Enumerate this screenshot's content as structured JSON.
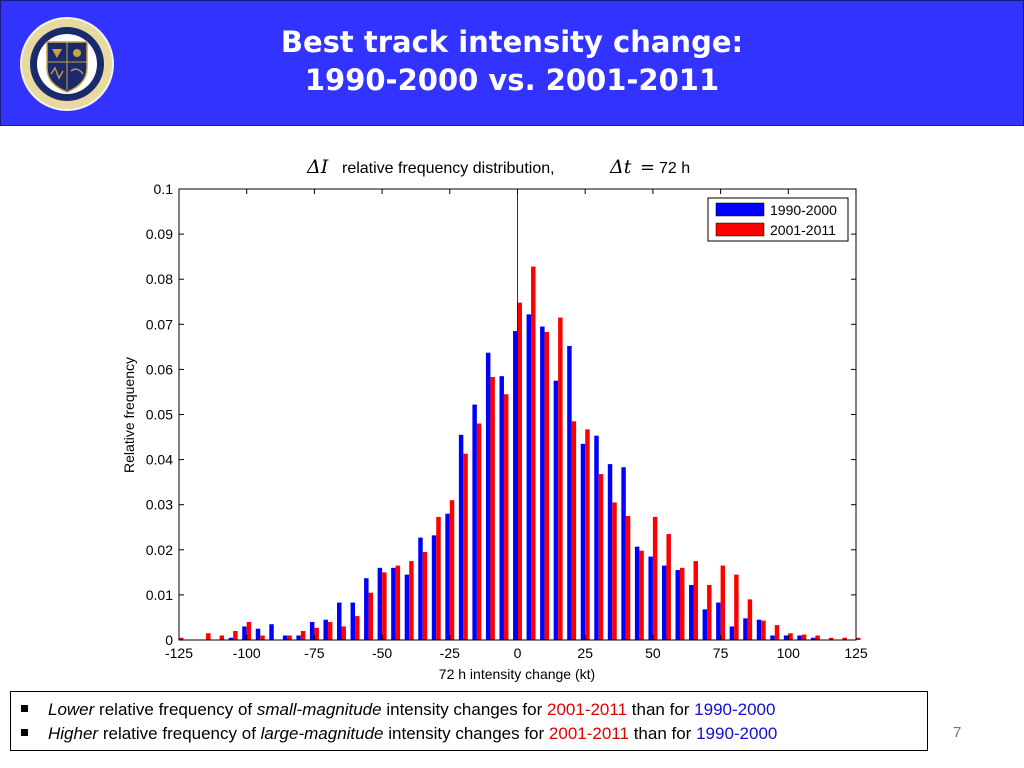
{
  "header": {
    "title_line1": "Best track intensity change:",
    "title_line2": "1990-2000 vs. 2001-2011",
    "logo_text": "NAVAL RESEARCH LABORATORY MONTEREY, CA"
  },
  "colors": {
    "header_bg": "#3333ff",
    "series1": "#0000ff",
    "series2": "#ff0000"
  },
  "chart_data": {
    "type": "bar",
    "title_symbol": "ΔI",
    "title_text": "relative frequency distribution,",
    "title_dt": "Δt",
    "title_eq": "=",
    "title_value": "72 h",
    "xlabel": "72 h intensity change (kt)",
    "ylabel": "Relative frequency",
    "xlim": [
      -125,
      125
    ],
    "ylim": [
      0,
      0.1
    ],
    "xticks": [
      "-125",
      "-100",
      "-75",
      "-50",
      "-25",
      "0",
      "25",
      "50",
      "75",
      "100",
      "125"
    ],
    "yticks": [
      "0",
      "0.01",
      "0.02",
      "0.03",
      "0.04",
      "0.05",
      "0.06",
      "0.07",
      "0.08",
      "0.09",
      "0.1"
    ],
    "zero_line": 0,
    "legend_position": "top-right",
    "x": [
      -125,
      -120,
      -115,
      -110,
      -105,
      -100,
      -95,
      -90,
      -85,
      -80,
      -75,
      -70,
      -65,
      -60,
      -55,
      -50,
      -45,
      -40,
      -35,
      -30,
      -25,
      -20,
      -15,
      -10,
      -5,
      0,
      5,
      10,
      15,
      20,
      25,
      30,
      35,
      40,
      45,
      50,
      55,
      60,
      65,
      70,
      75,
      80,
      85,
      90,
      95,
      100,
      105,
      110,
      115,
      120,
      125
    ],
    "series": [
      {
        "name": "1990-2000",
        "values": [
          0,
          0,
          0,
          0,
          0.0005,
          0.003,
          0.0025,
          0.0035,
          0.001,
          0.001,
          0.004,
          0.0045,
          0.0083,
          0.0083,
          0.0137,
          0.016,
          0.016,
          0.0145,
          0.0227,
          0.0232,
          0.028,
          0.0455,
          0.0522,
          0.0637,
          0.0585,
          0.0685,
          0.0722,
          0.0695,
          0.0575,
          0.0652,
          0.0435,
          0.0453,
          0.039,
          0.0383,
          0.0207,
          0.0185,
          0.0165,
          0.0155,
          0.0122,
          0.0068,
          0.0083,
          0.003,
          0.0048,
          0.0045,
          0.001,
          0.001,
          0.001,
          0.0005,
          0,
          0,
          0
        ]
      },
      {
        "name": "2001-2011",
        "values": [
          0.0005,
          0,
          0.0015,
          0.001,
          0.002,
          0.004,
          0.001,
          0,
          0.001,
          0.002,
          0.0027,
          0.004,
          0.003,
          0.0053,
          0.0105,
          0.015,
          0.0165,
          0.0175,
          0.0195,
          0.0273,
          0.031,
          0.0413,
          0.048,
          0.0583,
          0.0545,
          0.0748,
          0.0828,
          0.0683,
          0.0715,
          0.0485,
          0.0467,
          0.0368,
          0.0305,
          0.0275,
          0.0198,
          0.0273,
          0.0235,
          0.016,
          0.0175,
          0.0122,
          0.0165,
          0.0145,
          0.009,
          0.0043,
          0.0033,
          0.0015,
          0.0012,
          0.001,
          0.0005,
          0.0005,
          0.0005
        ]
      }
    ]
  },
  "notes": [
    {
      "em1": "Lower",
      "t1": "relative frequency of",
      "em2": "small-magnitude",
      "t2": "intensity changes for",
      "r": "2001-2011",
      "t3": "than for",
      "b": "1990-2000"
    },
    {
      "em1": "Higher",
      "t1": "relative frequency of",
      "em2": "large-magnitude",
      "t2": "intensity changes for",
      "r": "2001-2011",
      "t3": "than for",
      "b": "1990-2000"
    }
  ],
  "page_number": "7"
}
